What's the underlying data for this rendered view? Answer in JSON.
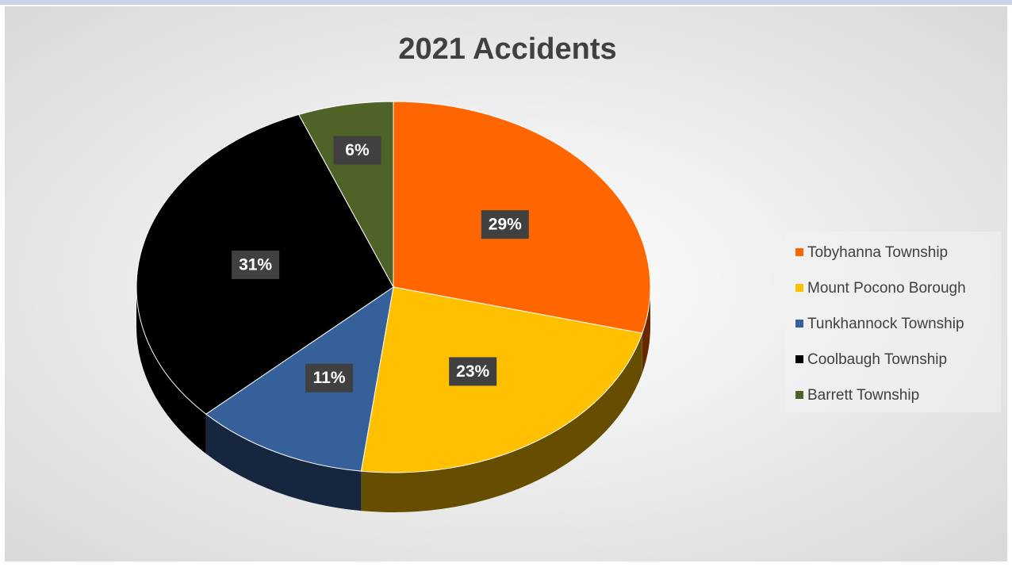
{
  "chart_data": {
    "type": "pie",
    "title": "2021 Accidents",
    "categories": [
      "Tobyhanna Township",
      "Mount Pocono Borough",
      "Tunkhannock Township",
      "Coolbaugh Township",
      "Barrett Township"
    ],
    "values": [
      29,
      23,
      11,
      31,
      6
    ],
    "value_labels": [
      "29%",
      "23%",
      "11%",
      "31%",
      "6%"
    ],
    "colors": [
      "#ff6600",
      "#ffc000",
      "#36609a",
      "#000000",
      "#4f6228"
    ],
    "legend": "right"
  }
}
